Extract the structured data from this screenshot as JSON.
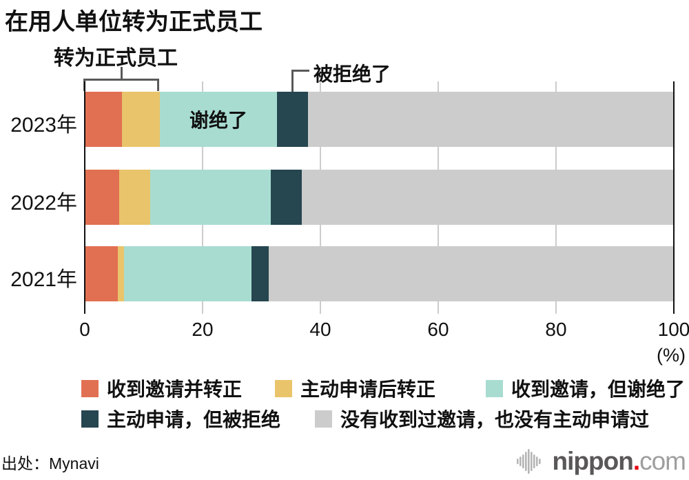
{
  "title": "在用人单位转为正式员工",
  "annotations": {
    "bracket_label": "转为正式员工",
    "rejected_label": "被拒绝了",
    "declined_label": "谢绝了"
  },
  "chart_data": {
    "type": "bar",
    "orientation": "horizontal",
    "stacked": true,
    "title": "在用人单位转为正式员工",
    "categories": [
      "2023年",
      "2022年",
      "2021年"
    ],
    "series": [
      {
        "name": "收到邀请并转正",
        "color": "#E17052",
        "values": [
          6.3,
          5.9,
          5.6
        ]
      },
      {
        "name": "主动申请后转正",
        "color": "#E9C46A",
        "values": [
          6.4,
          5.2,
          1.1
        ]
      },
      {
        "name": "收到邀请，但谢绝了",
        "color": "#A8DCD1",
        "values": [
          19.9,
          20.5,
          21.6
        ]
      },
      {
        "name": "主动申请，但被拒绝",
        "color": "#264650",
        "values": [
          5.3,
          5.3,
          2.9
        ]
      },
      {
        "name": "没有收到过邀请，也没有主动申请过",
        "color": "#CCCCCC",
        "values": [
          62.1,
          63.1,
          68.8
        ]
      }
    ],
    "xlim": [
      0,
      100
    ],
    "xticks": [
      0,
      20,
      40,
      60,
      80,
      100
    ],
    "unit_label": "(%)",
    "grid": true,
    "legend_position": "bottom",
    "legend_rows": [
      [
        0,
        1,
        2
      ],
      [
        3,
        4
      ]
    ]
  },
  "footer": {
    "source": "出处：Mynavi",
    "logo": {
      "name": "nippon",
      "dot": ".",
      "tld": "com"
    }
  }
}
